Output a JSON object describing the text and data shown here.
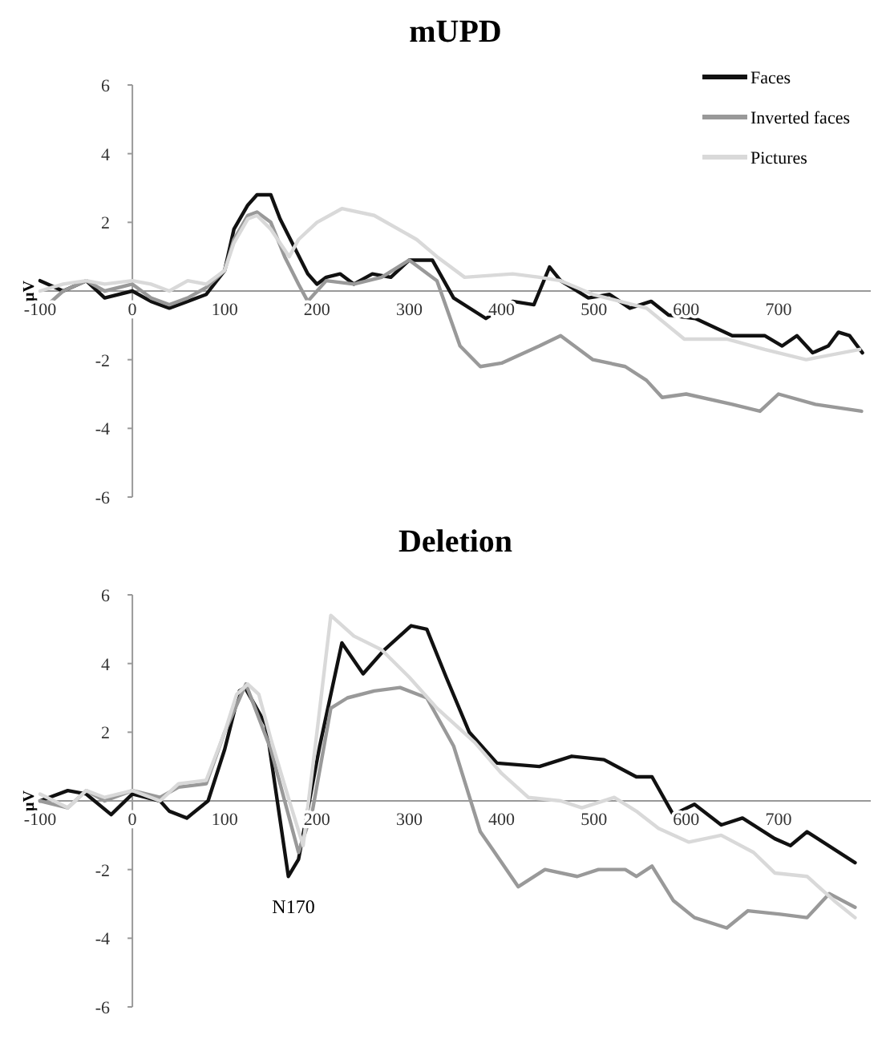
{
  "chart_data": [
    {
      "type": "line",
      "title": "mUPD",
      "ylabel": "μV",
      "xlim": [
        -100,
        800
      ],
      "xticks": [
        -100,
        0,
        100,
        200,
        300,
        400,
        500,
        600,
        700
      ],
      "ylim": [
        -6,
        6
      ],
      "yticks": [
        -6,
        -4,
        -2,
        {
          "value": 0,
          "label": null
        },
        2,
        4,
        6
      ],
      "grid": false,
      "legend": "top right",
      "line_style": "solid",
      "marker": "none",
      "series": [
        {
          "name": "Faces",
          "color": "#111111",
          "x": [
            -100,
            -75,
            -50,
            -30,
            0,
            20,
            40,
            60,
            80,
            100,
            110,
            125,
            135,
            150,
            160,
            175,
            190,
            200,
            210,
            225,
            240,
            260,
            280,
            300,
            325,
            348,
            383,
            412,
            435,
            452,
            464,
            494,
            517,
            539,
            562,
            581,
            610,
            650,
            685,
            704,
            720,
            737,
            754,
            765,
            777,
            791
          ],
          "values": [
            0.3,
            0,
            0.3,
            -0.2,
            0,
            -0.3,
            -0.5,
            -0.3,
            -0.1,
            0.6,
            1.8,
            2.5,
            2.8,
            2.8,
            2.1,
            1.3,
            0.5,
            0.2,
            0.4,
            0.5,
            0.2,
            0.5,
            0.4,
            0.9,
            0.9,
            -0.2,
            -0.8,
            -0.3,
            -0.4,
            0.7,
            0.3,
            -0.2,
            -0.1,
            -0.5,
            -0.3,
            -0.7,
            -0.8,
            -1.3,
            -1.3,
            -1.6,
            -1.3,
            -1.8,
            -1.6,
            -1.2,
            -1.3,
            -1.8
          ]
        },
        {
          "name": "Inverted faces",
          "color": "#999999",
          "x": [
            -100,
            -75,
            -50,
            -30,
            0,
            20,
            40,
            60,
            80,
            100,
            110,
            125,
            135,
            150,
            165,
            180,
            190,
            210,
            240,
            270,
            300,
            330,
            355,
            377,
            400,
            441,
            464,
            499,
            534,
            557,
            574,
            600,
            650,
            680,
            700,
            740,
            790
          ],
          "values": [
            -0.6,
            0,
            0.3,
            0,
            0.2,
            -0.2,
            -0.4,
            -0.2,
            0.1,
            0.6,
            1.5,
            2.2,
            2.3,
            2,
            1,
            0.2,
            -0.3,
            0.3,
            0.2,
            0.4,
            0.9,
            0.3,
            -1.6,
            -2.2,
            -2.1,
            -1.6,
            -1.3,
            -2,
            -2.2,
            -2.6,
            -3.1,
            -3,
            -3.3,
            -3.5,
            -3,
            -3.3,
            -3.5
          ]
        },
        {
          "name": "Pictures",
          "color": "#d9d9d9",
          "x": [
            -100,
            -75,
            -50,
            -30,
            0,
            20,
            40,
            60,
            80,
            100,
            110,
            125,
            135,
            150,
            170,
            180,
            200,
            227,
            262,
            308,
            330,
            360,
            412,
            441,
            464,
            499,
            557,
            598,
            644,
            685,
            730,
            788
          ],
          "values": [
            0,
            0.2,
            0.3,
            0.2,
            0.3,
            0.2,
            0,
            0.3,
            0.2,
            0.6,
            1.4,
            2.1,
            2.2,
            1.8,
            1,
            1.5,
            2,
            2.4,
            2.2,
            1.5,
            1,
            0.4,
            0.5,
            0.4,
            0.3,
            -0.1,
            -0.5,
            -1.4,
            -1.4,
            -1.7,
            -2,
            -1.7
          ]
        }
      ]
    },
    {
      "type": "line",
      "title": "Deletion",
      "ylabel": "μV",
      "xlim": [
        -100,
        800
      ],
      "xticks": [
        -100,
        0,
        100,
        200,
        300,
        400,
        500,
        600,
        700
      ],
      "ylim": [
        -6,
        6
      ],
      "yticks": [
        -6,
        -4,
        -2,
        {
          "value": 0,
          "label": null
        },
        2,
        4,
        6
      ],
      "grid": false,
      "line_style": "solid",
      "marker": "none",
      "annotations": [
        "N170"
      ],
      "series": [
        {
          "color": "#111111",
          "x": [
            -100,
            -70,
            -50,
            -23,
            0,
            30,
            40,
            59,
            82,
            100,
            116,
            122,
            145,
            169,
            180,
            203,
            227,
            250,
            273,
            302,
            319,
            340,
            365,
            395,
            441,
            476,
            511,
            546,
            563,
            586,
            609,
            638,
            661,
            696,
            713,
            731,
            783
          ],
          "values": [
            0,
            0.3,
            0.2,
            -0.4,
            0.2,
            0,
            -0.3,
            -0.5,
            0,
            1.5,
            3.2,
            3.3,
            2.2,
            -2.2,
            -1.7,
            1.6,
            4.6,
            3.7,
            4.4,
            5.1,
            5,
            3.6,
            2,
            1.1,
            1,
            1.3,
            1.2,
            0.7,
            0.7,
            -0.4,
            -0.1,
            -0.7,
            -0.5,
            -1.1,
            -1.3,
            -0.9,
            -1.8
          ]
        },
        {
          "color": "#999999",
          "x": [
            -100,
            -70,
            -50,
            -30,
            0,
            30,
            50,
            80,
            100,
            123,
            150,
            170,
            180,
            195,
            215,
            233,
            262,
            290,
            319,
            348,
            377,
            390,
            418,
            447,
            482,
            505,
            534,
            546,
            563,
            586,
            609,
            644,
            667,
            702,
            731,
            755,
            783
          ],
          "values": [
            0,
            -0.2,
            0.3,
            0,
            0.3,
            0.1,
            0.4,
            0.5,
            2,
            3.4,
            1.5,
            -0.5,
            -1.5,
            -0.3,
            2.7,
            3,
            3.2,
            3.3,
            3,
            1.6,
            -0.9,
            -1.4,
            -2.5,
            -2,
            -2.2,
            -2,
            -2,
            -2.2,
            -1.9,
            -2.9,
            -3.4,
            -3.7,
            -3.2,
            -3.3,
            -3.4,
            -2.7,
            -3.1
          ]
        },
        {
          "color": "#d9d9d9",
          "x": [
            -100,
            -70,
            -50,
            -30,
            0,
            30,
            50,
            80,
            100,
            113,
            125,
            137,
            150,
            170,
            185,
            200,
            215,
            240,
            270,
            300,
            330,
            371,
            400,
            429,
            464,
            487,
            522,
            546,
            570,
            603,
            638,
            673,
            696,
            731,
            760,
            783
          ],
          "values": [
            0.2,
            -0.2,
            0.3,
            0.1,
            0.3,
            0,
            0.5,
            0.6,
            2,
            3.1,
            3.4,
            3.1,
            1.8,
            0,
            -1.3,
            2,
            5.4,
            4.8,
            4.4,
            3.6,
            2.7,
            1.7,
            0.8,
            0.1,
            0,
            -0.2,
            0.1,
            -0.3,
            -0.8,
            -1.2,
            -1,
            -1.5,
            -2.1,
            -2.2,
            -2.9,
            -3.4
          ]
        }
      ]
    }
  ]
}
